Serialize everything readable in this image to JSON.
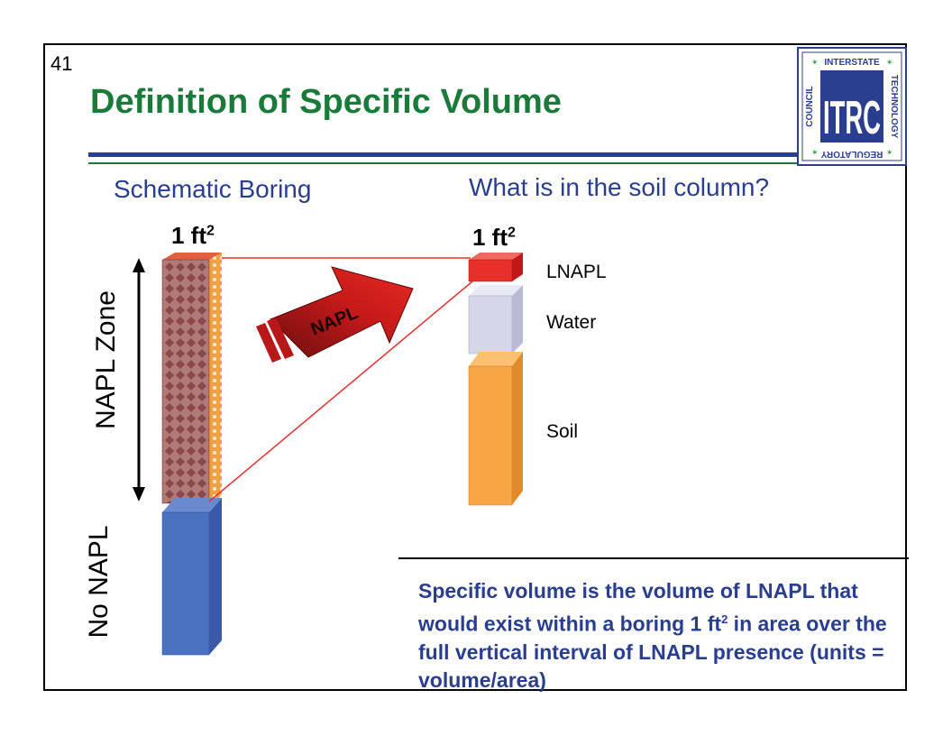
{
  "slide": {
    "number": "41",
    "title": "Definition of Specific Volume"
  },
  "logo": {
    "letters": "ITRC",
    "ring_words": [
      "INTERSTATE",
      "TECHNOLOGY",
      "REGULATORY",
      "COUNCIL"
    ]
  },
  "left_panel": {
    "heading": "Schematic Boring",
    "area_label": "1 ft",
    "area_exponent": "2",
    "napl_zone_label": "NAPL Zone",
    "no_napl_label": "No NAPL",
    "arrow_label": "NAPL"
  },
  "right_panel": {
    "heading": "What is in the soil column?",
    "area_label": "1 ft",
    "area_exponent": "2",
    "layers": [
      "LNAPL",
      "Water",
      "Soil"
    ]
  },
  "definition": {
    "part1": "Specific volume is the volume of LNAPL that would exist within a boring 1 ft",
    "exponent": "2",
    "part2": " in area over the full vertical interval of LNAPL presence (units = volume/area)"
  },
  "colors": {
    "title_green": "#1a7a3a",
    "heading_blue": "#2a3e8f",
    "lnapl_red": "#e8302a",
    "water_lavender": "#d4d6ea",
    "soil_orange": "#f7a545",
    "no_napl_blue": "#4a72c0",
    "napl_zone_brown": "#a86a6a"
  }
}
